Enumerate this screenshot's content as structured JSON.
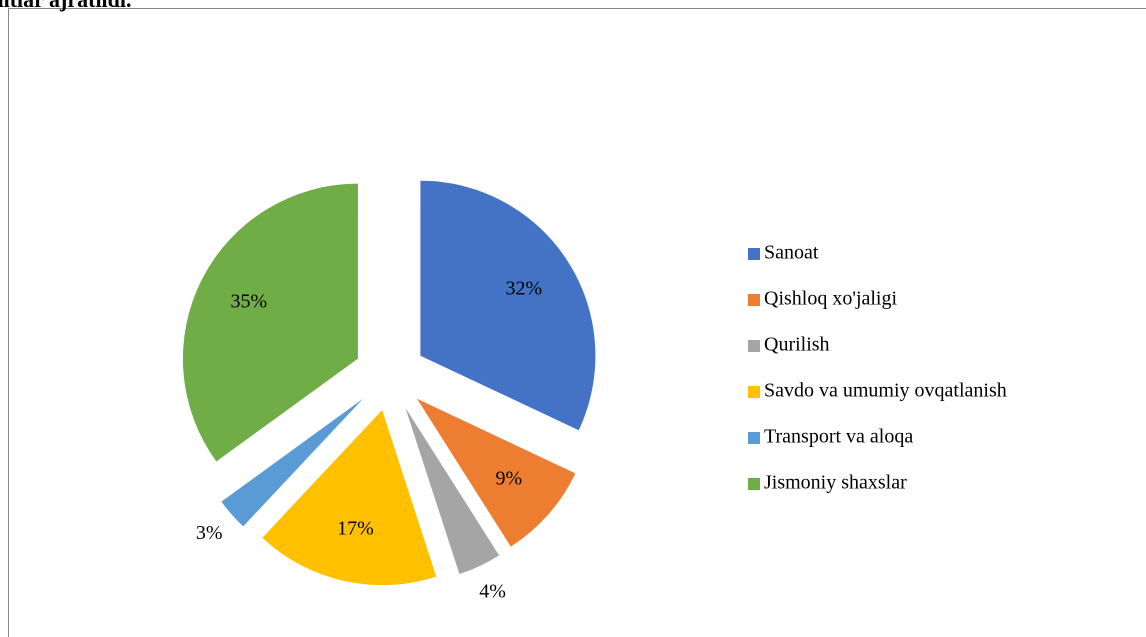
{
  "chart_data": {
    "type": "pie",
    "title": "kreditlar ajratildi.",
    "categories": [
      "Sanoat",
      "Qishloq xo'jaligi",
      "Qurilish",
      "Savdo va umumiy ovqatlanish",
      "Transport va aloqa",
      "Jismoniy shaxslar"
    ],
    "values": [
      32,
      9,
      4,
      17,
      3,
      35
    ],
    "value_labels": [
      "32%",
      "9%",
      "4%",
      "17%",
      "3%",
      "35%"
    ],
    "colors": [
      "#4472c4",
      "#ed7d31",
      "#a5a5a5",
      "#ffc000",
      "#5b9bd5",
      "#70ad47"
    ],
    "legend": "right"
  }
}
